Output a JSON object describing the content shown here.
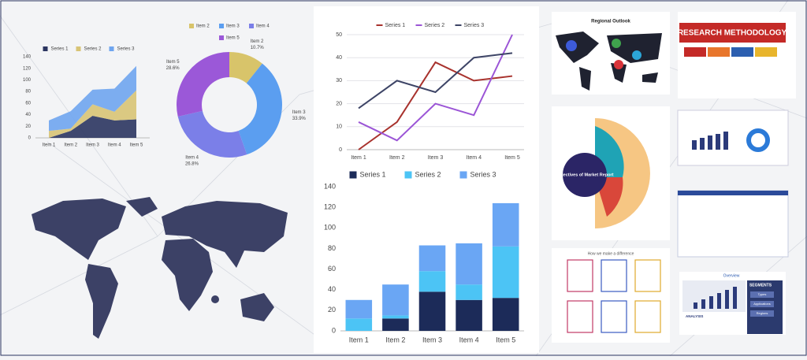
{
  "chart_data": [
    {
      "type": "area",
      "categories": [
        "Item 1",
        "Item 2",
        "Item 3",
        "Item 4",
        "Item 5"
      ],
      "series": [
        {
          "name": "Series 1",
          "color": "#2b3560",
          "values": [
            0,
            12,
            38,
            30,
            32
          ]
        },
        {
          "name": "Series 2",
          "color": "#d8c476",
          "values": [
            12,
            4,
            20,
            15,
            50
          ]
        },
        {
          "name": "Series 3",
          "color": "#6fa5ef",
          "values": [
            18,
            30,
            25,
            40,
            42
          ]
        }
      ],
      "ylim": [
        0,
        140
      ],
      "yticks": [
        0,
        20,
        40,
        60,
        80,
        100,
        120,
        140
      ],
      "grid": false,
      "stacked": true
    },
    {
      "type": "pie",
      "categories": [
        "Item 2",
        "Item 3",
        "Item 4",
        "Item 5"
      ],
      "values": [
        10.7,
        33.9,
        26.8,
        28.6
      ],
      "value_labels": [
        "10.7%",
        "33.9%",
        "26.8%",
        "28.6%"
      ],
      "colors": [
        "#d8c46a",
        "#5b9ef0",
        "#7b7fe8",
        "#9b58d8"
      ],
      "donut": true
    },
    {
      "type": "line",
      "categories": [
        "Item 1",
        "Item 2",
        "Item 3",
        "Item 4",
        "Item 5"
      ],
      "series": [
        {
          "name": "Series 1",
          "color": "#a8322d",
          "values": [
            0,
            12,
            38,
            30,
            32
          ]
        },
        {
          "name": "Series 2",
          "color": "#9b55d6",
          "values": [
            12,
            4,
            20,
            15,
            50
          ]
        },
        {
          "name": "Series 3",
          "color": "#3d4466",
          "values": [
            18,
            30,
            25,
            40,
            42
          ]
        }
      ],
      "ylim": [
        0,
        50
      ],
      "yticks": [
        0,
        10,
        20,
        30,
        40,
        50
      ],
      "grid": true
    },
    {
      "type": "bar",
      "categories": [
        "Item 1",
        "Item 2",
        "Item 3",
        "Item 4",
        "Item 5"
      ],
      "series": [
        {
          "name": "Series 1",
          "color": "#1c2b59",
          "values": [
            0,
            12,
            38,
            30,
            32
          ]
        },
        {
          "name": "Series 2",
          "color": "#4cc4f5",
          "values": [
            12,
            3,
            20,
            15,
            50
          ]
        },
        {
          "name": "Series 3",
          "color": "#6aa6f4",
          "values": [
            18,
            30,
            25,
            40,
            42
          ]
        }
      ],
      "ylim": [
        0,
        140
      ],
      "yticks": [
        0,
        20,
        40,
        60,
        80,
        100,
        120,
        140
      ],
      "grid": false,
      "stacked": true
    }
  ],
  "thumbnails": {
    "regional_outlook": "Regional Outlook",
    "research_methodology": "RESEARCH METHODOLOGY",
    "objectives": "Objectives of Market Report",
    "difference": "How we make a difference",
    "overview": "Overview",
    "segments": "SEGMENTS",
    "segment_items": [
      "Types",
      "Applications",
      "Regions"
    ],
    "analysis": "ANALYSIS"
  }
}
